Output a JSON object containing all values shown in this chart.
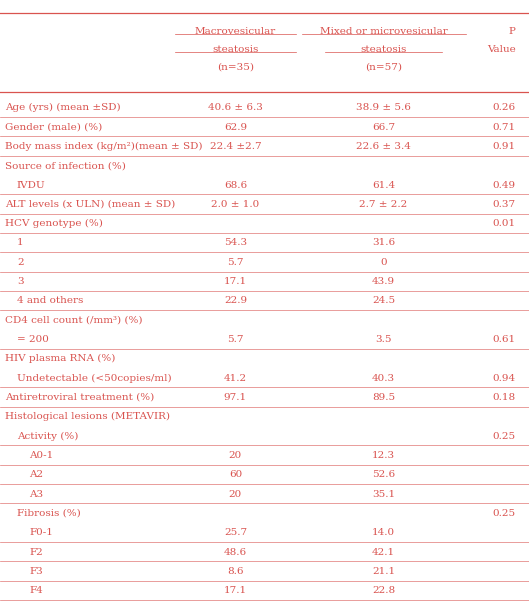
{
  "color": "#d9534f",
  "bg_color": "#ffffff",
  "col_headers": [
    [
      "Macrovesicular",
      "steatosis",
      "(n=35)"
    ],
    [
      "Mixed or microvesicular",
      "steatosis",
      "(n=57)"
    ],
    [
      "P",
      "Value"
    ]
  ],
  "rows": [
    {
      "label": "Age (yrs) (mean ±SD)",
      "indent": 0,
      "c1": "40.6 ± 6.3",
      "c2": "38.9 ± 5.6",
      "c3": "0.26"
    },
    {
      "label": "Gender (male) (%)",
      "indent": 0,
      "c1": "62.9",
      "c2": "66.7",
      "c3": "0.71"
    },
    {
      "label": "Body mass index (kg/m²)(mean ± SD)",
      "indent": 0,
      "c1": "22.4 ±2.7",
      "c2": "22.6 ± 3.4",
      "c3": "0.91"
    },
    {
      "label": "Source of infection (%)",
      "indent": 0,
      "c1": "",
      "c2": "",
      "c3": ""
    },
    {
      "label": "IVDU",
      "indent": 1,
      "c1": "68.6",
      "c2": "61.4",
      "c3": "0.49"
    },
    {
      "label": "ALT levels (x ULN) (mean ± SD)",
      "indent": 0,
      "c1": "2.0 ± 1.0",
      "c2": "2.7 ± 2.2",
      "c3": "0.37"
    },
    {
      "label": "HCV genotype (%)",
      "indent": 0,
      "c1": "",
      "c2": "",
      "c3": "0.01"
    },
    {
      "label": "1",
      "indent": 1,
      "c1": "54.3",
      "c2": "31.6",
      "c3": ""
    },
    {
      "label": "2",
      "indent": 1,
      "c1": "5.7",
      "c2": "0",
      "c3": ""
    },
    {
      "label": "3",
      "indent": 1,
      "c1": "17.1",
      "c2": "43.9",
      "c3": ""
    },
    {
      "label": "4 and others",
      "indent": 1,
      "c1": "22.9",
      "c2": "24.5",
      "c3": ""
    },
    {
      "label": "CD4 cell count (/mm³) (%)",
      "indent": 0,
      "c1": "",
      "c2": "",
      "c3": ""
    },
    {
      "label": "= 200",
      "indent": 1,
      "c1": "5.7",
      "c2": "3.5",
      "c3": "0.61"
    },
    {
      "label": "HIV plasma RNA (%)",
      "indent": 0,
      "c1": "",
      "c2": "",
      "c3": ""
    },
    {
      "label": "Undetectable (<50copies/ml)",
      "indent": 1,
      "c1": "41.2",
      "c2": "40.3",
      "c3": "0.94"
    },
    {
      "label": "Antiretroviral treatment (%)",
      "indent": 0,
      "c1": "97.1",
      "c2": "89.5",
      "c3": "0.18"
    },
    {
      "label": "Histological lesions (METAVIR)",
      "indent": 0,
      "c1": "",
      "c2": "",
      "c3": ""
    },
    {
      "label": "Activity (%)",
      "indent": 1,
      "c1": "",
      "c2": "",
      "c3": "0.25"
    },
    {
      "label": "A0-1",
      "indent": 2,
      "c1": "20",
      "c2": "12.3",
      "c3": ""
    },
    {
      "label": "A2",
      "indent": 2,
      "c1": "60",
      "c2": "52.6",
      "c3": ""
    },
    {
      "label": "A3",
      "indent": 2,
      "c1": "20",
      "c2": "35.1",
      "c3": ""
    },
    {
      "label": "Fibrosis (%)",
      "indent": 1,
      "c1": "",
      "c2": "",
      "c3": "0.25"
    },
    {
      "label": "F0-1",
      "indent": 2,
      "c1": "25.7",
      "c2": "14.0",
      "c3": ""
    },
    {
      "label": "F2",
      "indent": 2,
      "c1": "48.6",
      "c2": "42.1",
      "c3": ""
    },
    {
      "label": "F3",
      "indent": 2,
      "c1": "8.6",
      "c2": "21.1",
      "c3": ""
    },
    {
      "label": "F4",
      "indent": 2,
      "c1": "17.1",
      "c2": "22.8",
      "c3": ""
    }
  ],
  "rows_with_line_below": [
    0,
    1,
    2,
    4,
    5,
    6,
    7,
    8,
    9,
    10,
    12,
    14,
    15,
    17,
    18,
    19,
    20,
    22,
    23,
    24,
    25
  ],
  "figsize": [
    5.29,
    6.03
  ],
  "dpi": 100
}
